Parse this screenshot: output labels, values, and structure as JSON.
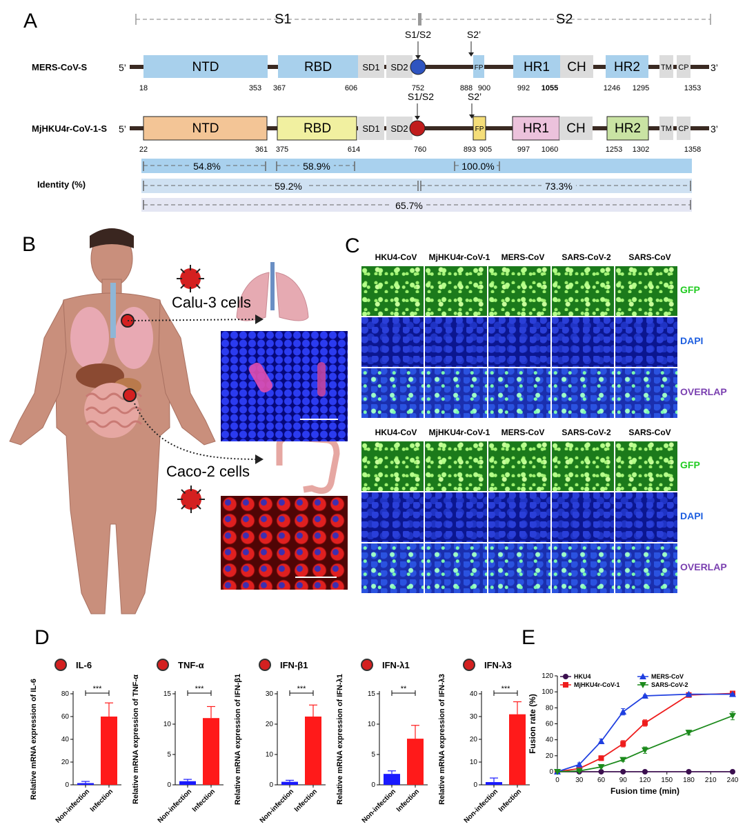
{
  "panels": {
    "a": "A",
    "b": "B",
    "c": "C",
    "d": "D",
    "e": "E"
  },
  "panel_a": {
    "s1": "S1",
    "s2": "S2",
    "five_prime": "5’",
    "three_prime": "3’",
    "mers": {
      "label": "MERS-CoV-S",
      "domains": {
        "ntd": "NTD",
        "rbd": "RBD",
        "sd1": "SD1",
        "sd2": "SD2",
        "fp": "FP",
        "hr1": "HR1",
        "ch": "CH",
        "hr2": "HR2",
        "tm": "TM",
        "cp": "CP"
      },
      "cleavage_s1s2": "S1/S2",
      "cleavage_s2p": "S2’",
      "positions": [
        "18",
        "353",
        "367",
        "606",
        "752",
        "888",
        "900",
        "992",
        "1055",
        "1246",
        "1295",
        "1353"
      ]
    },
    "mj": {
      "label": "MjHKU4r-CoV-1-S",
      "domains": {
        "ntd": "NTD",
        "rbd": "RBD",
        "sd1": "SD1",
        "sd2": "SD2",
        "fp": "FP",
        "hr1": "HR1",
        "ch": "CH",
        "hr2": "HR2",
        "tm": "TM",
        "cp": "CP"
      },
      "cleavage_s1s2": "S1/S2",
      "cleavage_s2p": "S2’",
      "positions": [
        "22",
        "361",
        "375",
        "614",
        "760",
        "893",
        "905",
        "997",
        "1060",
        "1253",
        "1302",
        "1358"
      ]
    },
    "identity_label": "Identity (%)",
    "identity": {
      "ntd": "54.8%",
      "rbd": "58.9%",
      "fp": "100.0%",
      "s1": "59.2%",
      "s2": "73.3%",
      "full": "65.7%"
    }
  },
  "panel_b": {
    "calu": "Calu-3 cells",
    "caco": "Caco-2 cells"
  },
  "panel_c": {
    "columns": [
      "HKU4-CoV",
      "MjHKU4r-CoV-1",
      "MERS-CoV",
      "SARS-CoV-2",
      "SARS-CoV"
    ],
    "rows": [
      {
        "label": "GFP",
        "color": "#22cc22"
      },
      {
        "label": "DAPI",
        "color": "#1e5fe0"
      },
      {
        "label": "OVERLAP",
        "color": "#7a3fb0"
      }
    ]
  },
  "panel_d": {
    "ylabel_prefix": "Relative mRNA expression of",
    "groups": [
      "Non-infection",
      "Infection"
    ],
    "colors": {
      "non": "#1a1aff",
      "inf": "#ff1a1a"
    },
    "plots": [
      {
        "name": "IL-6",
        "sig": "***",
        "ylim": [
          0,
          80
        ],
        "ticks": [
          0,
          20,
          40,
          60,
          80
        ],
        "values": [
          1.5,
          60
        ],
        "errors": [
          1.5,
          12
        ]
      },
      {
        "name": "TNF-α",
        "sig": "***",
        "ylim": [
          0,
          15
        ],
        "ticks": [
          0,
          5,
          10,
          15
        ],
        "values": [
          0.6,
          11
        ],
        "errors": [
          0.3,
          1.9
        ]
      },
      {
        "name": "IFN-β1",
        "sig": "***",
        "ylim": [
          0,
          30
        ],
        "ticks": [
          0,
          10,
          20,
          30
        ],
        "values": [
          1.0,
          22.5
        ],
        "errors": [
          0.5,
          3.8
        ]
      },
      {
        "name": "IFN-λ1",
        "sig": "**",
        "ylim": [
          0,
          15
        ],
        "ticks": [
          0,
          5,
          10,
          15
        ],
        "values": [
          1.8,
          7.6
        ],
        "errors": [
          0.5,
          2.2
        ]
      },
      {
        "name": "IFN-λ3",
        "sig": "***",
        "ylim": [
          0,
          40
        ],
        "ticks": [
          0,
          10,
          20,
          30,
          40
        ],
        "values": [
          1.2,
          31
        ],
        "errors": [
          1.8,
          5.5
        ]
      }
    ]
  },
  "chart_data": {
    "type": "line",
    "xlabel": "Fusion time (min)",
    "ylabel": "Fusion rate (%)",
    "xlim": [
      0,
      240
    ],
    "ylim": [
      0,
      120
    ],
    "xticks": [
      0,
      30,
      60,
      90,
      120,
      150,
      180,
      210,
      240
    ],
    "yticks": [
      0,
      20,
      40,
      60,
      80,
      100,
      120
    ],
    "legend_placement": "top",
    "series": [
      {
        "name": "HKU4",
        "color": "#3b0f4f",
        "marker": "circle",
        "x": [
          0,
          30,
          60,
          90,
          120,
          180,
          240
        ],
        "y": [
          0,
          0,
          0,
          0,
          0,
          0,
          0
        ],
        "err": [
          0,
          0,
          0,
          0,
          0,
          0,
          0
        ]
      },
      {
        "name": "MjHKU4r-CoV-1",
        "color": "#ee1c1c",
        "marker": "square",
        "x": [
          0,
          30,
          60,
          90,
          120,
          180,
          240
        ],
        "y": [
          0,
          4,
          17,
          35,
          61,
          96,
          98
        ],
        "err": [
          0,
          1,
          3,
          4,
          4,
          2,
          1
        ]
      },
      {
        "name": "MERS-CoV",
        "color": "#1f3fe0",
        "marker": "triangle-up",
        "x": [
          0,
          30,
          60,
          90,
          120,
          180,
          240
        ],
        "y": [
          0,
          9,
          38,
          75,
          95,
          97,
          97
        ],
        "err": [
          0,
          2,
          3,
          4,
          1,
          1,
          1
        ]
      },
      {
        "name": "SARS-CoV-2",
        "color": "#1c8a1c",
        "marker": "triangle-down",
        "x": [
          0,
          30,
          60,
          90,
          120,
          180,
          240
        ],
        "y": [
          0,
          1,
          6,
          15,
          27,
          49,
          70
        ],
        "err": [
          0,
          1,
          1,
          2,
          4,
          3,
          5
        ]
      }
    ]
  }
}
